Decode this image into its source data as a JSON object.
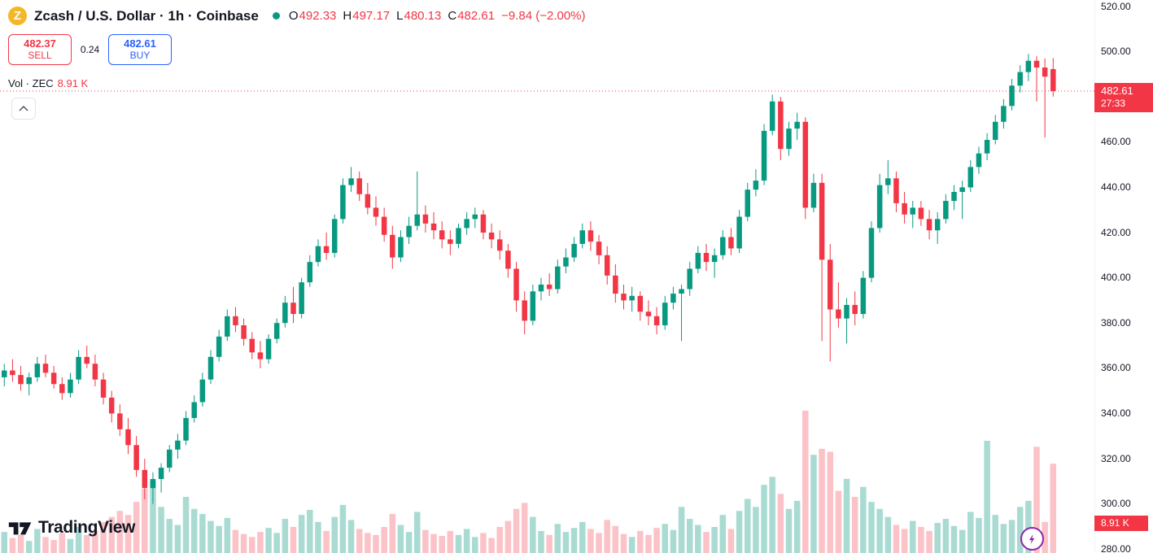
{
  "header": {
    "symbol_title": "Zcash / U.S. Dollar · 1h · Coinbase",
    "ohlc": {
      "o_label": "O",
      "o": "492.33",
      "h_label": "H",
      "h": "497.17",
      "l_label": "L",
      "l": "480.13",
      "c_label": "C",
      "c": "482.61",
      "change": "−9.84 (−2.00%)"
    },
    "sell_button": {
      "price": "482.37",
      "label": "SELL"
    },
    "spread": "0.24",
    "buy_button": {
      "price": "482.61",
      "label": "BUY"
    },
    "volume_row": {
      "label": "Vol · ZEC",
      "value": "8.91 K"
    }
  },
  "axis": {
    "price_ticks": [
      "520.00",
      "500.00",
      "480.00",
      "460.00",
      "440.00",
      "420.00",
      "400.00",
      "380.00",
      "360.00",
      "340.00",
      "320.00",
      "300.00",
      "280.00"
    ],
    "last_price_badge": {
      "price": "482.61",
      "countdown": "27:33"
    },
    "volume_badge": "8.91 K"
  },
  "footer": {
    "logo_text": "TradingView"
  },
  "chart_data": {
    "type": "candlestick",
    "title": "Zcash / U.S. Dollar",
    "interval": "1h",
    "exchange": "Coinbase",
    "last_bar": {
      "open": 492.33,
      "high": 497.17,
      "low": 480.13,
      "close": 482.61,
      "change": -9.84,
      "change_pct": -2.0
    },
    "price_line": 482.61,
    "bar_countdown": "27:33",
    "current_volume_k": 8.91,
    "y_ticks": [
      520,
      500,
      480,
      460,
      440,
      420,
      400,
      380,
      360,
      340,
      320,
      300,
      280
    ],
    "y_range": [
      278,
      523
    ],
    "grid": false,
    "colors": {
      "up": "#089981",
      "down": "#f23645",
      "vol_up": "rgba(8,153,129,0.35)",
      "vol_down": "rgba(242,54,69,0.30)",
      "price_line": "#f23645",
      "accent_buy": "#2962ff",
      "accent_sell": "#f23645",
      "badge_bg": "#f23645",
      "zcash_brand": "#f4b728"
    },
    "candles": [
      [
        356,
        362,
        352,
        359
      ],
      [
        359,
        364,
        354,
        357
      ],
      [
        357,
        361,
        350,
        353
      ],
      [
        353,
        358,
        348,
        356
      ],
      [
        356,
        365,
        354,
        362
      ],
      [
        362,
        366,
        356,
        358
      ],
      [
        358,
        361,
        351,
        353
      ],
      [
        353,
        356,
        346,
        349
      ],
      [
        349,
        358,
        347,
        355
      ],
      [
        355,
        368,
        353,
        365
      ],
      [
        365,
        370,
        360,
        362
      ],
      [
        362,
        366,
        352,
        355
      ],
      [
        355,
        358,
        344,
        347
      ],
      [
        347,
        350,
        336,
        340
      ],
      [
        340,
        344,
        330,
        333
      ],
      [
        333,
        338,
        322,
        326
      ],
      [
        326,
        330,
        312,
        315
      ],
      [
        315,
        320,
        302,
        307
      ],
      [
        307,
        314,
        300,
        311
      ],
      [
        311,
        318,
        305,
        316
      ],
      [
        316,
        326,
        314,
        324
      ],
      [
        324,
        331,
        320,
        328
      ],
      [
        328,
        341,
        326,
        338
      ],
      [
        338,
        348,
        336,
        345
      ],
      [
        345,
        358,
        343,
        355
      ],
      [
        355,
        368,
        353,
        365
      ],
      [
        365,
        377,
        363,
        374
      ],
      [
        374,
        386,
        372,
        383
      ],
      [
        383,
        387,
        376,
        379
      ],
      [
        379,
        382,
        370,
        373
      ],
      [
        373,
        376,
        364,
        367
      ],
      [
        367,
        372,
        360,
        364
      ],
      [
        364,
        375,
        362,
        373
      ],
      [
        373,
        382,
        371,
        380
      ],
      [
        380,
        392,
        378,
        389
      ],
      [
        389,
        396,
        380,
        384
      ],
      [
        384,
        400,
        382,
        398
      ],
      [
        398,
        410,
        396,
        407
      ],
      [
        407,
        417,
        405,
        414
      ],
      [
        414,
        420,
        408,
        411
      ],
      [
        411,
        428,
        409,
        426
      ],
      [
        426,
        444,
        424,
        441
      ],
      [
        441,
        449,
        438,
        444
      ],
      [
        444,
        447,
        434,
        437
      ],
      [
        437,
        442,
        428,
        431
      ],
      [
        431,
        436,
        423,
        427
      ],
      [
        427,
        431,
        416,
        419
      ],
      [
        419,
        423,
        404,
        409
      ],
      [
        409,
        421,
        407,
        418
      ],
      [
        418,
        427,
        415,
        423
      ],
      [
        423,
        447,
        421,
        428
      ],
      [
        428,
        432,
        420,
        424
      ],
      [
        424,
        429,
        417,
        421
      ],
      [
        421,
        425,
        413,
        417
      ],
      [
        417,
        421,
        410,
        415
      ],
      [
        415,
        424,
        413,
        422
      ],
      [
        422,
        429,
        419,
        426
      ],
      [
        426,
        431,
        422,
        428
      ],
      [
        428,
        430,
        417,
        420
      ],
      [
        420,
        424,
        413,
        417
      ],
      [
        417,
        421,
        408,
        412
      ],
      [
        412,
        415,
        400,
        404
      ],
      [
        404,
        407,
        385,
        390
      ],
      [
        390,
        394,
        375,
        381
      ],
      [
        381,
        397,
        379,
        394
      ],
      [
        394,
        400,
        390,
        397
      ],
      [
        397,
        402,
        392,
        395
      ],
      [
        395,
        408,
        393,
        405
      ],
      [
        405,
        413,
        402,
        409
      ],
      [
        409,
        418,
        407,
        415
      ],
      [
        415,
        424,
        413,
        421
      ],
      [
        421,
        425,
        412,
        416
      ],
      [
        416,
        419,
        406,
        410
      ],
      [
        410,
        414,
        397,
        401
      ],
      [
        401,
        406,
        389,
        393
      ],
      [
        393,
        397,
        386,
        390
      ],
      [
        390,
        396,
        385,
        392
      ],
      [
        392,
        394,
        381,
        385
      ],
      [
        385,
        390,
        379,
        383
      ],
      [
        383,
        387,
        375,
        379
      ],
      [
        379,
        392,
        377,
        389
      ],
      [
        389,
        396,
        386,
        393
      ],
      [
        393,
        397,
        372,
        395
      ],
      [
        395,
        407,
        392,
        404
      ],
      [
        404,
        414,
        402,
        411
      ],
      [
        411,
        415,
        403,
        407
      ],
      [
        407,
        413,
        400,
        410
      ],
      [
        410,
        421,
        408,
        418
      ],
      [
        418,
        422,
        410,
        413
      ],
      [
        413,
        430,
        411,
        427
      ],
      [
        427,
        442,
        425,
        439
      ],
      [
        439,
        448,
        436,
        443
      ],
      [
        443,
        468,
        441,
        465
      ],
      [
        465,
        481,
        463,
        478
      ],
      [
        478,
        480,
        452,
        457
      ],
      [
        457,
        469,
        454,
        466
      ],
      [
        466,
        473,
        461,
        469
      ],
      [
        469,
        471,
        426,
        431
      ],
      [
        431,
        446,
        429,
        442
      ],
      [
        442,
        446,
        372,
        408
      ],
      [
        408,
        415,
        363,
        386
      ],
      [
        386,
        398,
        378,
        382
      ],
      [
        382,
        391,
        371,
        388
      ],
      [
        388,
        394,
        379,
        384
      ],
      [
        384,
        403,
        382,
        400
      ],
      [
        400,
        425,
        398,
        422
      ],
      [
        422,
        446,
        420,
        441
      ],
      [
        441,
        452,
        437,
        444
      ],
      [
        444,
        447,
        429,
        433
      ],
      [
        433,
        438,
        424,
        428
      ],
      [
        428,
        434,
        422,
        431
      ],
      [
        431,
        434,
        423,
        426
      ],
      [
        426,
        430,
        417,
        421
      ],
      [
        421,
        429,
        415,
        426
      ],
      [
        426,
        437,
        424,
        434
      ],
      [
        434,
        441,
        430,
        438
      ],
      [
        438,
        443,
        426,
        440
      ],
      [
        440,
        452,
        438,
        449
      ],
      [
        449,
        458,
        446,
        455
      ],
      [
        455,
        464,
        452,
        461
      ],
      [
        461,
        472,
        459,
        469
      ],
      [
        469,
        479,
        466,
        476
      ],
      [
        476,
        488,
        474,
        485
      ],
      [
        485,
        494,
        482,
        491
      ],
      [
        491,
        499,
        487,
        496
      ],
      [
        496,
        498,
        478,
        493
      ],
      [
        493,
        497,
        462,
        489
      ],
      [
        492.33,
        497.17,
        480.13,
        482.61
      ]
    ],
    "volumes_k": [
      2.1,
      1.5,
      1.8,
      1.2,
      2.4,
      1.6,
      1.3,
      2.0,
      1.4,
      2.6,
      1.8,
      2.2,
      3.1,
      3.6,
      4.2,
      3.8,
      5.1,
      6.4,
      7.2,
      4.6,
      3.4,
      2.8,
      5.6,
      4.4,
      3.9,
      3.2,
      2.7,
      3.5,
      2.3,
      1.9,
      1.6,
      2.1,
      2.5,
      2.0,
      3.4,
      2.6,
      3.8,
      4.3,
      3.1,
      2.2,
      3.6,
      4.8,
      3.3,
      2.4,
      2.0,
      1.8,
      2.6,
      3.9,
      2.8,
      2.1,
      4.1,
      2.3,
      1.9,
      1.7,
      2.2,
      1.8,
      2.4,
      1.6,
      2.0,
      1.5,
      2.6,
      3.2,
      4.4,
      5.0,
      3.6,
      2.2,
      1.8,
      2.9,
      2.1,
      2.5,
      3.1,
      2.4,
      2.0,
      3.3,
      2.7,
      1.9,
      1.6,
      2.2,
      1.8,
      2.5,
      2.9,
      2.3,
      4.6,
      3.4,
      2.8,
      2.1,
      2.6,
      3.8,
      2.4,
      4.2,
      5.4,
      4.6,
      6.8,
      7.6,
      5.9,
      4.4,
      5.2,
      14.2,
      9.8,
      10.4,
      10.1,
      6.2,
      7.4,
      5.6,
      6.6,
      5.1,
      4.4,
      3.6,
      2.8,
      2.4,
      3.2,
      2.6,
      2.2,
      3.0,
      3.4,
      2.7,
      2.3,
      4.1,
      3.5,
      11.2,
      3.8,
      2.9,
      3.3,
      4.6,
      5.2,
      10.6,
      3.1,
      8.91
    ]
  }
}
